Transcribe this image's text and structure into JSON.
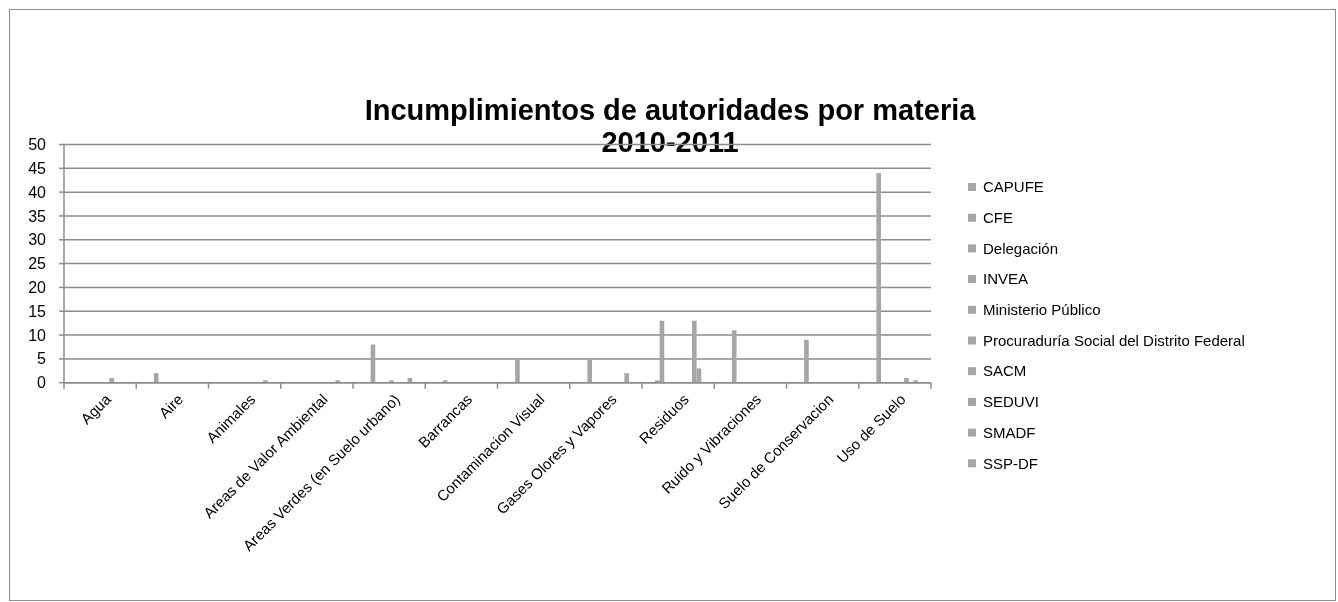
{
  "chart_data": {
    "type": "bar",
    "title": "Incumplimientos de autoridades por materia\n2010-2011",
    "categories": [
      "Agua",
      "Aire",
      "Animales",
      "Areas de Valor Ambiental",
      "Areas Verdes (en Suelo urbano)",
      "Barrancas",
      "Contaminacion Visual",
      "Gases Olores y Vapores",
      "Residuos",
      "Ruido y Vibraciones",
      "Suelo de Conservacion",
      "Uso de Suelo"
    ],
    "series": [
      {
        "name": "CAPUFE",
        "color": "#a6a6a6",
        "values": [
          null,
          null,
          null,
          null,
          null,
          null,
          null,
          null,
          0.5,
          null,
          null,
          null
        ]
      },
      {
        "name": "CFE",
        "color": "#a6a6a6",
        "values": [
          null,
          2,
          null,
          null,
          8,
          0.5,
          5,
          5,
          13,
          11,
          9,
          44
        ]
      },
      {
        "name": "Delegación",
        "color": "#a6a6a6",
        "values": [
          null,
          null,
          null,
          null,
          null,
          null,
          null,
          null,
          null,
          null,
          null,
          null
        ]
      },
      {
        "name": "INVEA",
        "color": "#a6a6a6",
        "values": [
          null,
          null,
          null,
          null,
          null,
          null,
          null,
          null,
          null,
          null,
          null,
          null
        ]
      },
      {
        "name": "Ministerio Público",
        "color": "#a6a6a6",
        "values": [
          null,
          null,
          null,
          null,
          null,
          null,
          null,
          null,
          null,
          null,
          null,
          null
        ]
      },
      {
        "name": "Procuraduría Social del Distrito Federal",
        "color": "#a6a6a6",
        "values": [
          null,
          null,
          null,
          null,
          0.5,
          null,
          null,
          null,
          null,
          null,
          null,
          null
        ]
      },
      {
        "name": "SACM",
        "color": "#a6a6a6",
        "values": [
          null,
          null,
          null,
          null,
          null,
          null,
          null,
          null,
          null,
          null,
          null,
          null
        ]
      },
      {
        "name": "SEDUVI",
        "color": "#a6a6a6",
        "values": [
          1,
          null,
          null,
          null,
          null,
          null,
          null,
          null,
          null,
          null,
          null,
          1
        ]
      },
      {
        "name": "SMADF",
        "color": "#a6a6a6",
        "values": [
          null,
          null,
          null,
          null,
          null,
          null,
          null,
          null,
          13,
          null,
          null,
          null
        ]
      },
      {
        "name": "SSP-DF",
        "color": "#a6a6a6",
        "values": [
          null,
          null,
          0.5,
          0.5,
          1,
          null,
          null,
          2,
          3,
          null,
          null,
          0.5
        ]
      }
    ],
    "ylim": [
      0,
      50
    ],
    "yticks": [
      0,
      5,
      10,
      15,
      20,
      25,
      30,
      35,
      40,
      45,
      50
    ],
    "grid": "y",
    "legend": "right"
  }
}
